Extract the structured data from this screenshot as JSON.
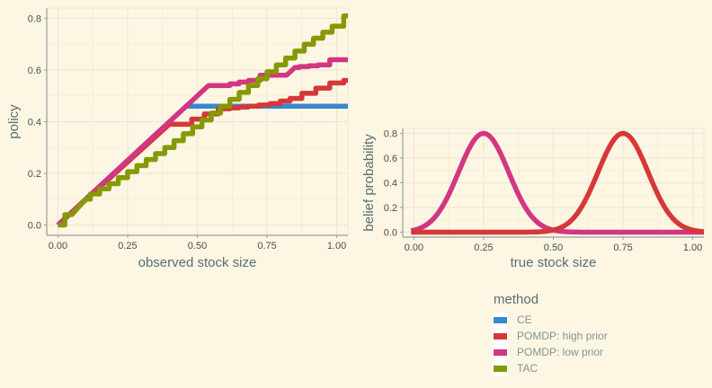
{
  "colors": {
    "background": "#fdf6e3",
    "grid": "#eee8d5",
    "axis": "#93a1a1",
    "CE": "#3a87cf",
    "POMDP: high prior": "#d6373a",
    "POMDP: low prior": "#d33682",
    "TAC": "#859900"
  },
  "chart_data": [
    {
      "id": "policy",
      "type": "line",
      "xlabel": "observed stock size",
      "ylabel": "policy",
      "xlim": [
        -0.04,
        1.04
      ],
      "ylim": [
        -0.04,
        0.84
      ],
      "xticks": [
        0,
        0.25,
        0.5,
        0.75,
        1
      ],
      "xtick_labels": [
        "0.00",
        "0.25",
        "0.50",
        "0.75",
        "1.00"
      ],
      "yticks": [
        0,
        0.2,
        0.4,
        0.6,
        0.8
      ],
      "ytick_labels": [
        "0.0",
        "0.2",
        "0.4",
        "0.6",
        "0.8"
      ],
      "grid": true,
      "series": [
        {
          "name": "CE",
          "x": [
            0,
            0.46,
            0.5,
            1.05
          ],
          "y": [
            0,
            0.46,
            0.46,
            0.46
          ]
        },
        {
          "name": "POMDP: high prior",
          "x": [
            0,
            0.4,
            0.46,
            0.5,
            0.55,
            0.6,
            0.7,
            0.78,
            0.85,
            0.9,
            0.95,
            1.0,
            1.05
          ],
          "y": [
            0,
            0.39,
            0.39,
            0.41,
            0.43,
            0.45,
            0.46,
            0.47,
            0.49,
            0.51,
            0.53,
            0.55,
            0.56
          ]
        },
        {
          "name": "POMDP: low prior",
          "x": [
            0,
            0.54,
            0.6,
            0.7,
            0.75,
            0.82,
            0.85,
            0.95,
            1.0,
            1.05
          ],
          "y": [
            0,
            0.54,
            0.54,
            0.56,
            0.58,
            0.58,
            0.61,
            0.62,
            0.64,
            0.64
          ]
        },
        {
          "name": "TAC",
          "x": [
            0,
            0.05,
            0.1,
            0.2,
            0.3,
            0.4,
            0.5,
            0.6,
            0.7,
            0.8,
            0.9,
            1.0,
            1.05
          ],
          "y": [
            0,
            0.04,
            0.1,
            0.16,
            0.23,
            0.3,
            0.38,
            0.46,
            0.54,
            0.62,
            0.7,
            0.77,
            0.81
          ]
        }
      ]
    },
    {
      "id": "belief",
      "type": "line",
      "xlabel": "true stock size",
      "ylabel": "belief probability",
      "xlim": [
        -0.04,
        1.04
      ],
      "ylim": [
        -0.04,
        0.84
      ],
      "xticks": [
        0,
        0.25,
        0.5,
        0.75,
        1
      ],
      "xtick_labels": [
        "0.00",
        "0.25",
        "0.50",
        "0.75",
        "1.00"
      ],
      "yticks": [
        0,
        0.2,
        0.4,
        0.6,
        0.8
      ],
      "ytick_labels": [
        "0.0",
        "0.2",
        "0.4",
        "0.6",
        "0.8"
      ],
      "grid": true,
      "series": [
        {
          "name": "POMDP: low prior",
          "peak_x": 0.25,
          "peak_y": 0.8,
          "sd": 0.09
        },
        {
          "name": "POMDP: high prior",
          "peak_x": 0.75,
          "peak_y": 0.8,
          "sd": 0.09
        }
      ]
    }
  ],
  "legend": {
    "title": "method",
    "position": "bottom-right",
    "items": [
      {
        "label": "CE",
        "color": "#3a87cf"
      },
      {
        "label": "POMDP: high prior",
        "color": "#d6373a"
      },
      {
        "label": "POMDP: low prior",
        "color": "#d33682"
      },
      {
        "label": "TAC",
        "color": "#859900"
      }
    ]
  }
}
